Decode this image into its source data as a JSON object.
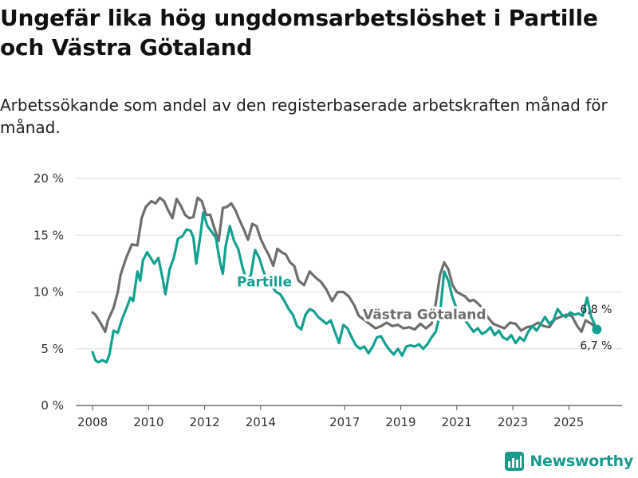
{
  "header": {
    "title": "Ungefär lika hög ungdomsarbetslöshet i Partille och Västra Götaland",
    "subtitle": "Arbetssökande som andel av den registerbaserade arbetskraften månad för månad."
  },
  "brand": {
    "name": "Newsworthy",
    "color": "#1a9a8c"
  },
  "chart_data": {
    "type": "line",
    "title": "Ungefär lika hög ungdomsarbetslöshet i Partille och Västra Götaland",
    "subtitle": "Arbetssökande som andel av den registerbaserade arbetskraften månad för månad.",
    "xlabel": "",
    "ylabel": "",
    "ylim": [
      0,
      20
    ],
    "xlim": [
      2007.4,
      2026.9
    ],
    "y_ticks": [
      0,
      5,
      10,
      15,
      20
    ],
    "y_tick_labels": [
      "0 %",
      "5 %",
      "10 %",
      "15 %",
      "20 %"
    ],
    "x_ticks": [
      2008,
      2010,
      2012,
      2014,
      2017,
      2019,
      2021,
      2023,
      2025
    ],
    "x_tick_labels": [
      "2008",
      "2010",
      "2012",
      "2014",
      "2017",
      "2019",
      "2021",
      "2023",
      "2025"
    ],
    "grid": true,
    "series": [
      {
        "name": "Västra Götaland",
        "color": "#6e6e6e",
        "end_label": "6,8 %",
        "points": [
          [
            2008.0,
            8.2
          ],
          [
            2008.1,
            8.0
          ],
          [
            2008.3,
            7.2
          ],
          [
            2008.45,
            6.5
          ],
          [
            2008.55,
            7.5
          ],
          [
            2008.75,
            8.6
          ],
          [
            2008.9,
            10.0
          ],
          [
            2009.0,
            11.5
          ],
          [
            2009.2,
            13.0
          ],
          [
            2009.4,
            14.2
          ],
          [
            2009.6,
            14.1
          ],
          [
            2009.75,
            16.5
          ],
          [
            2009.9,
            17.5
          ],
          [
            2010.1,
            18.0
          ],
          [
            2010.25,
            17.8
          ],
          [
            2010.4,
            18.3
          ],
          [
            2010.55,
            18.0
          ],
          [
            2010.7,
            17.2
          ],
          [
            2010.85,
            16.5
          ],
          [
            2011.0,
            18.2
          ],
          [
            2011.15,
            17.6
          ],
          [
            2011.3,
            16.8
          ],
          [
            2011.45,
            16.5
          ],
          [
            2011.6,
            16.6
          ],
          [
            2011.75,
            18.3
          ],
          [
            2011.9,
            18.0
          ],
          [
            2012.05,
            16.8
          ],
          [
            2012.2,
            16.8
          ],
          [
            2012.35,
            15.6
          ],
          [
            2012.5,
            14.5
          ],
          [
            2012.65,
            17.4
          ],
          [
            2012.8,
            17.5
          ],
          [
            2012.95,
            17.8
          ],
          [
            2013.1,
            17.2
          ],
          [
            2013.25,
            16.3
          ],
          [
            2013.4,
            15.5
          ],
          [
            2013.55,
            14.6
          ],
          [
            2013.7,
            16.0
          ],
          [
            2013.85,
            15.8
          ],
          [
            2014.0,
            14.7
          ],
          [
            2014.15,
            13.9
          ],
          [
            2014.3,
            13.2
          ],
          [
            2014.45,
            12.3
          ],
          [
            2014.6,
            13.8
          ],
          [
            2014.75,
            13.5
          ],
          [
            2014.9,
            13.3
          ],
          [
            2015.05,
            12.6
          ],
          [
            2015.2,
            12.3
          ],
          [
            2015.35,
            11.0
          ],
          [
            2015.55,
            10.6
          ],
          [
            2015.75,
            11.8
          ],
          [
            2015.95,
            11.3
          ],
          [
            2016.15,
            10.9
          ],
          [
            2016.35,
            10.2
          ],
          [
            2016.55,
            9.2
          ],
          [
            2016.75,
            10.0
          ],
          [
            2016.95,
            10.0
          ],
          [
            2017.15,
            9.6
          ],
          [
            2017.35,
            8.8
          ],
          [
            2017.5,
            7.9
          ],
          [
            2018.1,
            6.8
          ],
          [
            2018.3,
            7.0
          ],
          [
            2018.5,
            7.3
          ],
          [
            2018.7,
            7.0
          ],
          [
            2018.9,
            7.1
          ],
          [
            2019.1,
            6.8
          ],
          [
            2019.3,
            6.9
          ],
          [
            2019.5,
            6.7
          ],
          [
            2019.7,
            7.2
          ],
          [
            2019.9,
            6.8
          ],
          [
            2020.1,
            7.2
          ],
          [
            2020.25,
            9.0
          ],
          [
            2020.4,
            11.5
          ],
          [
            2020.55,
            12.6
          ],
          [
            2020.7,
            12.0
          ],
          [
            2020.85,
            10.6
          ],
          [
            2021.0,
            10.0
          ],
          [
            2021.15,
            9.8
          ],
          [
            2021.3,
            9.6
          ],
          [
            2021.45,
            9.2
          ],
          [
            2021.6,
            9.3
          ],
          [
            2021.75,
            9.0
          ],
          [
            2021.9,
            8.6
          ],
          [
            2022.1,
            7.8
          ],
          [
            2022.3,
            7.2
          ],
          [
            2022.5,
            7.0
          ],
          [
            2022.7,
            6.8
          ],
          [
            2022.9,
            7.3
          ],
          [
            2023.1,
            7.2
          ],
          [
            2023.3,
            6.6
          ],
          [
            2023.5,
            6.9
          ],
          [
            2023.7,
            7.0
          ],
          [
            2023.9,
            7.3
          ],
          [
            2024.1,
            7.0
          ],
          [
            2024.3,
            6.9
          ],
          [
            2024.5,
            7.6
          ],
          [
            2024.7,
            7.8
          ],
          [
            2024.9,
            8.0
          ],
          [
            2025.1,
            7.9
          ],
          [
            2025.3,
            7.0
          ],
          [
            2025.45,
            6.5
          ],
          [
            2025.6,
            7.5
          ],
          [
            2025.8,
            7.2
          ],
          [
            2026.0,
            6.8
          ]
        ]
      },
      {
        "name": "Partille",
        "color": "#12a190",
        "end_label": "6,7 %",
        "points": [
          [
            2008.0,
            4.7
          ],
          [
            2008.1,
            4.0
          ],
          [
            2008.2,
            3.8
          ],
          [
            2008.35,
            4.0
          ],
          [
            2008.5,
            3.8
          ],
          [
            2008.6,
            4.5
          ],
          [
            2008.75,
            6.6
          ],
          [
            2008.9,
            6.4
          ],
          [
            2009.05,
            7.6
          ],
          [
            2009.2,
            8.5
          ],
          [
            2009.35,
            9.5
          ],
          [
            2009.45,
            9.2
          ],
          [
            2009.6,
            11.8
          ],
          [
            2009.7,
            11.0
          ],
          [
            2009.8,
            12.8
          ],
          [
            2009.95,
            13.5
          ],
          [
            2010.1,
            12.9
          ],
          [
            2010.2,
            12.5
          ],
          [
            2010.35,
            13.0
          ],
          [
            2010.5,
            11.2
          ],
          [
            2010.6,
            9.8
          ],
          [
            2010.75,
            12.0
          ],
          [
            2010.9,
            13.0
          ],
          [
            2011.05,
            14.7
          ],
          [
            2011.2,
            14.9
          ],
          [
            2011.35,
            15.5
          ],
          [
            2011.5,
            15.4
          ],
          [
            2011.6,
            14.8
          ],
          [
            2011.7,
            12.5
          ],
          [
            2011.85,
            15.0
          ],
          [
            2011.95,
            17.0
          ],
          [
            2012.1,
            15.8
          ],
          [
            2012.25,
            15.3
          ],
          [
            2012.4,
            14.8
          ],
          [
            2012.55,
            12.6
          ],
          [
            2012.65,
            11.6
          ],
          [
            2012.75,
            14.0
          ],
          [
            2012.9,
            15.8
          ],
          [
            2013.05,
            14.5
          ],
          [
            2013.2,
            13.8
          ],
          [
            2013.35,
            12.2
          ],
          [
            2013.5,
            11.0
          ],
          [
            2013.65,
            11.5
          ],
          [
            2013.8,
            13.7
          ],
          [
            2013.95,
            13.0
          ],
          [
            2014.1,
            11.8
          ],
          [
            2014.25,
            11.0
          ],
          [
            2014.4,
            10.5
          ],
          [
            2014.55,
            10.0
          ],
          [
            2014.7,
            9.8
          ],
          [
            2014.85,
            9.2
          ],
          [
            2015.0,
            8.5
          ],
          [
            2015.15,
            8.0
          ],
          [
            2015.3,
            7.0
          ],
          [
            2015.45,
            6.7
          ],
          [
            2015.6,
            8.0
          ],
          [
            2015.75,
            8.5
          ],
          [
            2015.9,
            8.3
          ],
          [
            2016.05,
            7.8
          ],
          [
            2016.2,
            7.5
          ],
          [
            2016.35,
            7.2
          ],
          [
            2016.5,
            7.5
          ],
          [
            2016.65,
            6.5
          ],
          [
            2016.8,
            5.5
          ],
          [
            2016.95,
            7.1
          ],
          [
            2017.1,
            6.8
          ],
          [
            2017.25,
            6.0
          ],
          [
            2017.4,
            5.3
          ],
          [
            2017.55,
            5.0
          ],
          [
            2017.7,
            5.2
          ],
          [
            2017.85,
            4.6
          ],
          [
            2018.0,
            5.2
          ],
          [
            2018.15,
            6.0
          ],
          [
            2018.3,
            6.1
          ],
          [
            2018.45,
            5.4
          ],
          [
            2018.6,
            4.9
          ],
          [
            2018.75,
            4.5
          ],
          [
            2018.9,
            5.0
          ],
          [
            2019.05,
            4.4
          ],
          [
            2019.2,
            5.2
          ],
          [
            2019.35,
            5.3
          ],
          [
            2019.5,
            5.2
          ],
          [
            2019.65,
            5.4
          ],
          [
            2019.8,
            5.0
          ],
          [
            2019.95,
            5.4
          ],
          [
            2020.1,
            6.0
          ],
          [
            2020.25,
            6.5
          ],
          [
            2020.4,
            8.0
          ],
          [
            2020.55,
            11.8
          ],
          [
            2020.7,
            11.0
          ],
          [
            2020.85,
            9.5
          ],
          [
            2021.0,
            8.5
          ],
          [
            2021.15,
            8.0
          ],
          [
            2021.3,
            7.5
          ],
          [
            2021.45,
            7.0
          ],
          [
            2021.6,
            6.5
          ],
          [
            2021.75,
            6.8
          ],
          [
            2021.9,
            6.3
          ],
          [
            2022.05,
            6.5
          ],
          [
            2022.2,
            6.9
          ],
          [
            2022.35,
            6.2
          ],
          [
            2022.5,
            6.6
          ],
          [
            2022.65,
            6.0
          ],
          [
            2022.8,
            5.8
          ],
          [
            2022.95,
            6.2
          ],
          [
            2023.1,
            5.5
          ],
          [
            2023.25,
            6.0
          ],
          [
            2023.4,
            5.7
          ],
          [
            2023.55,
            6.5
          ],
          [
            2023.7,
            7.0
          ],
          [
            2023.85,
            6.6
          ],
          [
            2024.0,
            7.2
          ],
          [
            2024.15,
            7.8
          ],
          [
            2024.3,
            7.2
          ],
          [
            2024.45,
            7.5
          ],
          [
            2024.6,
            8.5
          ],
          [
            2024.75,
            8.0
          ],
          [
            2024.9,
            7.8
          ],
          [
            2025.05,
            8.2
          ],
          [
            2025.2,
            8.0
          ],
          [
            2025.35,
            8.1
          ],
          [
            2025.5,
            7.9
          ],
          [
            2025.65,
            9.5
          ],
          [
            2025.8,
            7.8
          ],
          [
            2026.0,
            6.7
          ]
        ]
      }
    ],
    "annotations": [
      {
        "text": "Partille",
        "series": "Partille"
      },
      {
        "text": "Västra Götaland",
        "series": "Västra Götaland"
      }
    ]
  }
}
